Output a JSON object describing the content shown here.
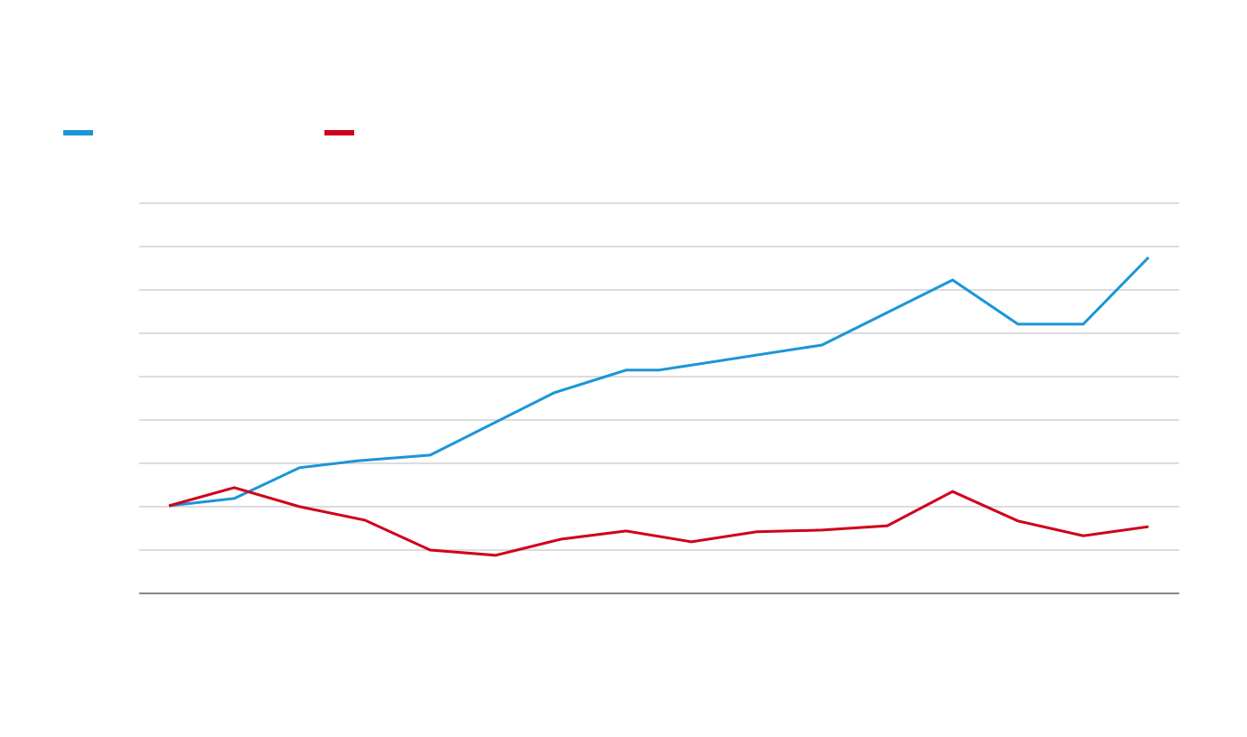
{
  "chart_data": {
    "type": "line",
    "title": "",
    "xlabel": "",
    "ylabel": "",
    "xlim": [
      -0.457,
      15.47
    ],
    "ylim": [
      0,
      9
    ],
    "grid": true,
    "gridlines_y": [
      1,
      2,
      3,
      4,
      5,
      6,
      7,
      8,
      9
    ],
    "legend": "top-left",
    "series": [
      {
        "name": "",
        "color": "#1a96d8",
        "x": [
          0,
          1,
          2,
          2.9,
          4,
          5.9,
          7,
          7.5,
          10,
          12,
          13,
          14,
          15
        ],
        "y": [
          2.02,
          2.19,
          2.9,
          3.06,
          3.19,
          4.63,
          5.15,
          5.15,
          5.73,
          7.23,
          6.21,
          6.21,
          7.75
        ]
      },
      {
        "name": "",
        "color": "#d0021b",
        "x": [
          0,
          1,
          2,
          3,
          4,
          5,
          6,
          7,
          8,
          9,
          10,
          11,
          12,
          13,
          14,
          15
        ],
        "y": [
          2.02,
          2.44,
          2.0,
          1.69,
          1.0,
          0.88,
          1.25,
          1.44,
          1.19,
          1.42,
          1.46,
          1.56,
          2.35,
          1.67,
          1.33,
          1.54
        ]
      }
    ]
  }
}
